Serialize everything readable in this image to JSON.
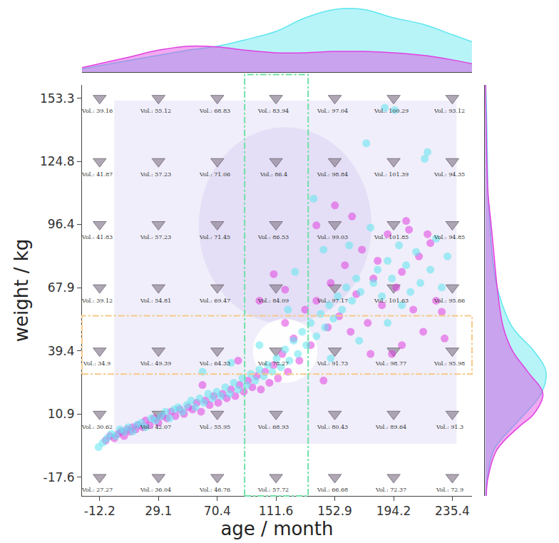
{
  "chart_data": [
    {
      "type": "scatter",
      "x_label": "age / month",
      "y_label": "weight / kg",
      "xlim": [
        -24.6,
        249.2
      ],
      "ylim": [
        -26,
        159.3
      ],
      "xticks": [
        -12.2,
        29.1,
        70.4,
        111.6,
        152.9,
        194.2,
        235.4
      ],
      "yticks": [
        -17.6,
        10.9,
        39.4,
        67.9,
        96.4,
        124.8,
        153.3
      ],
      "grid": false,
      "series": [
        {
          "color": "#e040e0",
          "marker": "circle",
          "x": [
            -8,
            -5,
            -2,
            1,
            3,
            5,
            7,
            9,
            11,
            13,
            15,
            18,
            20,
            23,
            26,
            29,
            32,
            35,
            38,
            41,
            44,
            47,
            50,
            53,
            56,
            59,
            62,
            65,
            68,
            71,
            74,
            77,
            80,
            83,
            86,
            89,
            92,
            95,
            98,
            101,
            104,
            107,
            110,
            113,
            116,
            118,
            118,
            120,
            124,
            128,
            132,
            136,
            140,
            145,
            148,
            150,
            153,
            156,
            160,
            164,
            168,
            172,
            176,
            178,
            180,
            183,
            186,
            190,
            193,
            196,
            200,
            203,
            205,
            208,
            212,
            215,
            218,
            220,
            224,
            228,
            230,
            100,
            110,
            85,
            60,
            140,
            165,
            200
          ],
          "y": [
            -1,
            1,
            0,
            2,
            3,
            1,
            4,
            3,
            5,
            4,
            6,
            5,
            8,
            6,
            9,
            7,
            10,
            9,
            12,
            10,
            13,
            11,
            14,
            13,
            16,
            12,
            17,
            15,
            19,
            16,
            20,
            18,
            22,
            19,
            24,
            21,
            26,
            23,
            28,
            22,
            30,
            25,
            33,
            27,
            38,
            52,
            67,
            30,
            45,
            35,
            58,
            42,
            62,
            26,
            50,
            70,
            105,
            55,
            78,
            48,
            65,
            85,
            52,
            38,
            72,
            80,
            60,
            92,
            38,
            68,
            75,
            98,
            94,
            58,
            82,
            48,
            92,
            88,
            62,
            57,
            45,
            62,
            74,
            35,
            24,
            96,
            100,
            42
          ]
        },
        {
          "color": "#5fe6ef",
          "marker": "circle",
          "x": [
            -13,
            -10,
            -7,
            -4,
            -1,
            2,
            5,
            8,
            11,
            14,
            17,
            20,
            24,
            27,
            31,
            34,
            37,
            40,
            43,
            46,
            49,
            52,
            55,
            58,
            61,
            64,
            67,
            70,
            73,
            76,
            79,
            82,
            85,
            88,
            91,
            94,
            97,
            100,
            103,
            106,
            109,
            112,
            115,
            118,
            121,
            124,
            127,
            130,
            133,
            136,
            138,
            140,
            143,
            146,
            149,
            152,
            155,
            158,
            161,
            163,
            165,
            168,
            171,
            175,
            178,
            180,
            183,
            186,
            188,
            190,
            193,
            195,
            198,
            200,
            203,
            206,
            210,
            213,
            216,
            218,
            220,
            224,
            228,
            232,
            60,
            80,
            100,
            120,
            150,
            170,
            190,
            125,
            145
          ],
          "y": [
            -4,
            -2,
            0,
            2,
            1,
            4,
            3,
            5,
            3,
            6,
            7,
            5,
            9,
            8,
            10,
            12,
            9,
            13,
            14,
            12,
            15,
            17,
            14,
            18,
            16,
            20,
            18,
            21,
            19,
            23,
            20,
            25,
            22,
            27,
            24,
            29,
            26,
            31,
            28,
            33,
            30,
            36,
            32,
            40,
            35,
            44,
            38,
            48,
            42,
            52,
            108,
            46,
            56,
            50,
            60,
            54,
            64,
            58,
            68,
            87,
            62,
            72,
            66,
            133,
            95,
            70,
            76,
            64,
            149,
            80,
            72,
            148,
            87,
            60,
            78,
            66,
            84,
            70,
            126,
            129,
            76,
            90,
            68,
            82,
            30,
            34,
            42,
            58,
            36,
            44,
            52,
            75,
            85
          ]
        }
      ],
      "grid_labels_by_ytick": [
        [
          "Vol.: 27.27",
          "Vol.: 36.04",
          "Vol.: 46.76",
          "Vol.: 57.72",
          "Vol.: 66.68",
          "Vol.: 72.37",
          "Vol.: 72.9"
        ],
        [
          "Vol.: 30.62",
          "Vol.: 42.07",
          "Vol.: 55.95",
          "Vol.: 68.93",
          "Vol.: 80.43",
          "Vol.: 89.64",
          "Vol.: 91.3"
        ],
        [
          "Vol.: 34.9",
          "Vol.: 49.39",
          "Vol.: 64.33",
          "Vol.: 78.27",
          "Vol.: 91.73",
          "Vol.: 98.77",
          "Vol.: 95.98"
        ],
        [
          "Vol.: 39.12",
          "Vol.: 54.81",
          "Vol.: 69.47",
          "Vol.: 84.09",
          "Vol.: 97.17",
          "Vol.: 101.63",
          "Vol.: 95.66"
        ],
        [
          "Vol.: 41.83",
          "Vol.: 57.23",
          "Vol.: 71.45",
          "Vol.: 86.53",
          "Vol.: 99.03",
          "Vol.: 101.85",
          "Vol.: 94.85"
        ],
        [
          "Vol.: 41.87",
          "Vol.: 57.23",
          "Vol.: 71.06",
          "Vol.: 86.4",
          "Vol.: 98.84",
          "Vol.: 101.39",
          "Vol.: 94.35"
        ],
        [
          "Vol.: 39.16",
          "Vol.: 55.12",
          "Vol.: 68.83",
          "Vol.: 83.94",
          "Vol.: 97.04",
          "Vol.: 100.29",
          "Vol.: 93.12"
        ]
      ],
      "highlight_x": [
        89.6,
        134.2
      ],
      "highlight_y": [
        28.9,
        55.2
      ]
    },
    {
      "type": "area",
      "tick_labels": false,
      "xlim": [
        -24.6,
        249.2
      ],
      "ylim": [
        0,
        1.05
      ],
      "x": [
        -24.6,
        -12.2,
        8,
        29.1,
        50,
        70.4,
        90,
        111.6,
        132,
        152.9,
        173,
        194.2,
        215,
        235.4,
        249.2
      ],
      "series": [
        {
          "color": "#5fe6ef",
          "values": [
            0.05,
            0.1,
            0.18,
            0.26,
            0.34,
            0.4,
            0.5,
            0.63,
            0.84,
            0.97,
            0.97,
            0.84,
            0.74,
            0.58,
            0.47
          ]
        },
        {
          "color": "#e040e0",
          "values": [
            0.07,
            0.13,
            0.23,
            0.34,
            0.4,
            0.39,
            0.34,
            0.3,
            0.3,
            0.32,
            0.32,
            0.3,
            0.26,
            0.19,
            0.13
          ]
        }
      ]
    },
    {
      "type": "area",
      "orientation": "horizontal",
      "tick_labels": false,
      "xlim": [
        0,
        1.05
      ],
      "ylim": [
        -26,
        159.3
      ],
      "y": [
        -26,
        -17.6,
        -5,
        5,
        10.9,
        20,
        30,
        39.4,
        50,
        67.9,
        82,
        96.4,
        110,
        124.8,
        140,
        153.3,
        159.3
      ],
      "series": [
        {
          "color": "#5fe6ef",
          "values": [
            0.02,
            0.04,
            0.15,
            0.45,
            0.65,
            0.92,
            1.0,
            0.8,
            0.45,
            0.2,
            0.12,
            0.08,
            0.05,
            0.04,
            0.03,
            0.02,
            0.01
          ]
        },
        {
          "color": "#e040e0",
          "values": [
            0.02,
            0.05,
            0.2,
            0.55,
            0.8,
            0.95,
            0.7,
            0.45,
            0.3,
            0.2,
            0.15,
            0.1,
            0.05,
            0.03,
            0.02,
            0.01,
            0.01
          ]
        }
      ]
    }
  ]
}
